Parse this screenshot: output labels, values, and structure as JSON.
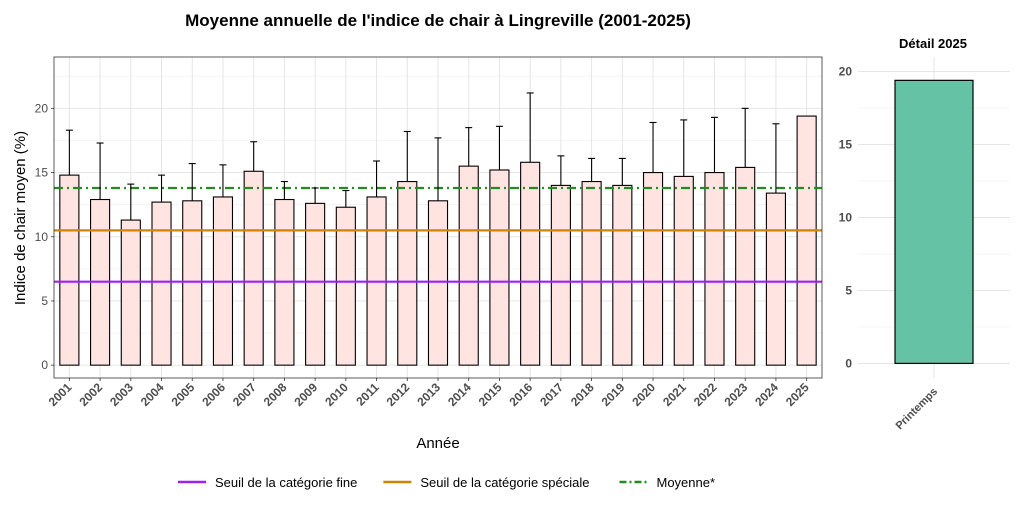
{
  "chart_data": [
    {
      "type": "bar",
      "title": "Moyenne annuelle de l'indice de chair à Lingreville (2001-2025)",
      "xlabel": "Année",
      "ylabel": "Indice de chair moyen (%)",
      "ylim": [
        -1,
        24
      ],
      "yticks": [
        0,
        5,
        10,
        15,
        20
      ],
      "grid": true,
      "categories": [
        "2001",
        "2002",
        "2003",
        "2004",
        "2005",
        "2006",
        "2007",
        "2008",
        "2009",
        "2010",
        "2011",
        "2012",
        "2013",
        "2014",
        "2015",
        "2016",
        "2017",
        "2018",
        "2019",
        "2020",
        "2021",
        "2022",
        "2023",
        "2024",
        "2025"
      ],
      "series": [
        {
          "values": [
            14.8,
            12.9,
            11.3,
            12.7,
            12.8,
            13.1,
            15.1,
            12.9,
            12.6,
            12.3,
            13.1,
            14.3,
            12.8,
            15.5,
            15.2,
            15.8,
            14.0,
            14.3,
            14.0,
            15.0,
            14.7,
            15.0,
            15.4,
            13.4,
            19.4
          ],
          "error_upper": [
            18.3,
            17.3,
            14.1,
            14.8,
            15.7,
            15.6,
            17.4,
            14.3,
            13.8,
            13.6,
            15.9,
            18.2,
            17.7,
            18.5,
            18.6,
            21.2,
            16.3,
            16.1,
            16.1,
            18.9,
            19.1,
            19.3,
            20.0,
            18.8,
            null
          ],
          "color": "#FFE4E1"
        }
      ],
      "reference_lines": [
        {
          "name": "Seuil de la catégorie fine",
          "value": 6.5,
          "color": "#A020F0",
          "style": "solid"
        },
        {
          "name": "Seuil de la catégorie spéciale",
          "value": 10.5,
          "color": "#CD8500",
          "style": "solid"
        },
        {
          "name": "Moyenne*",
          "value": 13.8,
          "color": "#228B22",
          "style": "dashdot"
        }
      ],
      "legend_position": "bottom"
    },
    {
      "type": "bar",
      "title": "Détail 2025",
      "categories": [
        "Printemps"
      ],
      "values": [
        19.4
      ],
      "ylim": [
        -1,
        21
      ],
      "yticks": [
        0,
        5,
        10,
        15,
        20
      ],
      "color": "#66C2A5",
      "grid": true
    }
  ]
}
